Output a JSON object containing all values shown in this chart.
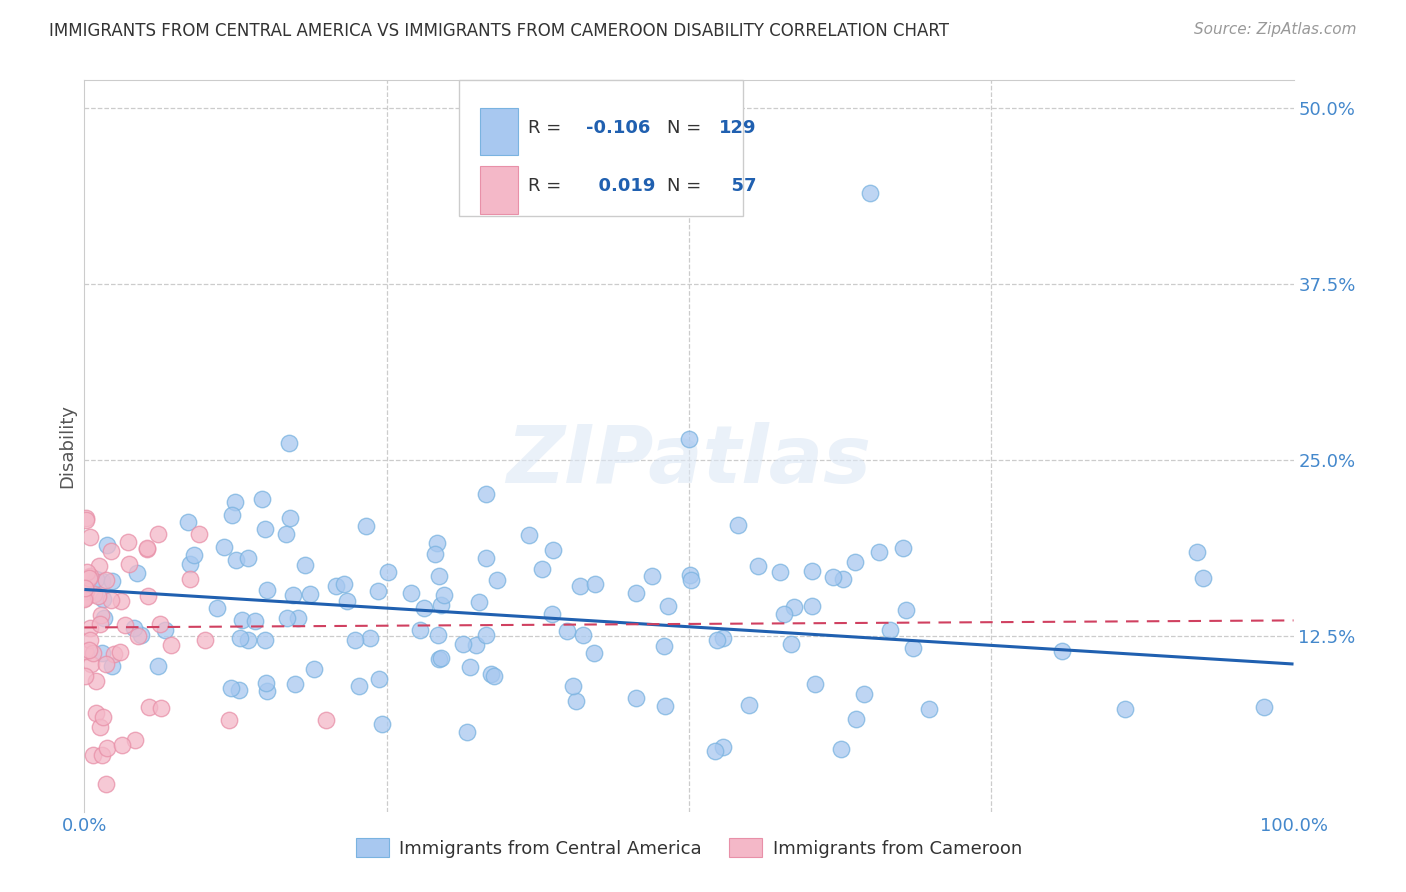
{
  "title": "IMMIGRANTS FROM CENTRAL AMERICA VS IMMIGRANTS FROM CAMEROON DISABILITY CORRELATION CHART",
  "source": "Source: ZipAtlas.com",
  "ylabel": "Disability",
  "xlim": [
    0.0,
    1.0
  ],
  "ylim": [
    0.0,
    0.52
  ],
  "yticks": [
    0.0,
    0.125,
    0.25,
    0.375,
    0.5
  ],
  "ytick_labels": [
    "",
    "12.5%",
    "25.0%",
    "37.5%",
    "50.0%"
  ],
  "xtick_labels": [
    "0.0%",
    "",
    "",
    "",
    "100.0%"
  ],
  "grid_color": "#cccccc",
  "background_color": "#ffffff",
  "blue_fill": "#a8c8f0",
  "blue_edge": "#7ab3e0",
  "pink_fill": "#f4b8c8",
  "pink_edge": "#e890a8",
  "blue_line_color": "#2060b0",
  "pink_line_color": "#d04060",
  "legend_R_blue": "-0.106",
  "legend_N_blue": "129",
  "legend_R_pink": "0.019",
  "legend_N_pink": "57",
  "watermark": "ZIPatlas",
  "blue_trend_y_start": 0.158,
  "blue_trend_y_end": 0.105,
  "pink_trend_y_start": 0.131,
  "pink_trend_y_end": 0.136
}
